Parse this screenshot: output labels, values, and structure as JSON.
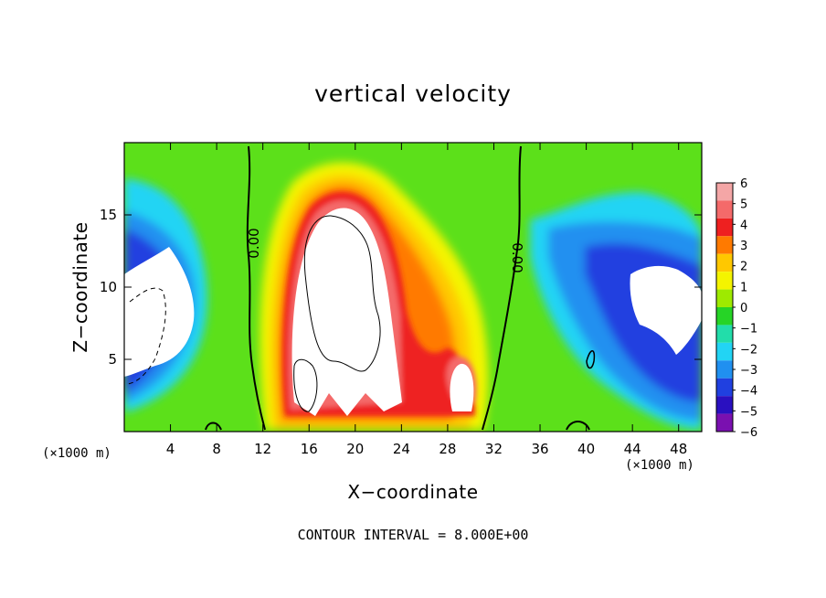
{
  "chart_data": {
    "type": "heatmap",
    "title": "vertical velocity",
    "xlabel": "X−coordinate",
    "ylabel": "Z−coordinate",
    "x_unit_label": "(×1000 m)",
    "footer": "CONTOUR INTERVAL = 8.000E+00",
    "xlim": [
      0,
      50
    ],
    "ylim": [
      0,
      20
    ],
    "x_ticks": [
      "4",
      "8",
      "12",
      "16",
      "20",
      "24",
      "28",
      "32",
      "36",
      "40",
      "44",
      "48"
    ],
    "y_ticks": [
      "5",
      "10",
      "15"
    ],
    "contour_labels": [
      "0.00",
      "0.00"
    ],
    "colorbar": {
      "labels": [
        "6",
        "5",
        "4",
        "3",
        "2",
        "1",
        "0",
        "−1",
        "−2",
        "−3",
        "−4",
        "−5",
        "−6"
      ],
      "colors": [
        "#f4a6a6",
        "#f46a6a",
        "#ee2020",
        "#ff7a00",
        "#ffc800",
        "#f4f400",
        "#9eea00",
        "#26d426",
        "#22ddaa",
        "#22d4f4",
        "#2090f0",
        "#2040e0",
        "#2a10c0",
        "#7a10b0"
      ]
    },
    "features": [
      {
        "kind": "updraft_core",
        "x": 19,
        "z": 11.5,
        "note": "above 6"
      },
      {
        "kind": "updraft_core",
        "x": 29,
        "z": 3,
        "note": "above 6"
      },
      {
        "kind": "updraft_core",
        "x": 16,
        "z": 3.5,
        "note": "above 6"
      },
      {
        "kind": "downdraft_core",
        "x": 3,
        "z": 7,
        "note": "below -6"
      },
      {
        "kind": "downdraft_core",
        "x": 47,
        "z": 9,
        "note": "below -6"
      }
    ]
  }
}
